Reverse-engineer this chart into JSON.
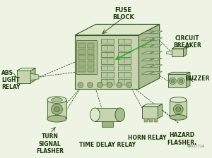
{
  "bg_color": "#eef4e4",
  "line_color": "#2d5a1e",
  "text_color": "#1a3a0a",
  "font_size": 5.5,
  "watermark": "96011714",
  "labels": {
    "fuse_block": "FUSE\nBLOCK",
    "circuit_breaker": "CIRCUIT\nBREAKER",
    "abs_light_relay": "ABS\nLIGHT\nRELAY",
    "buzzer": "BUZZER",
    "turn_signal_flasher": "TURN\nSIGNAL\nFLASHER",
    "time_delay_relay": "TIME DELAY RELAY",
    "horn_relay": "HORN RELAY",
    "hazard_flasher": "HAZARD\nFLASHER,"
  }
}
